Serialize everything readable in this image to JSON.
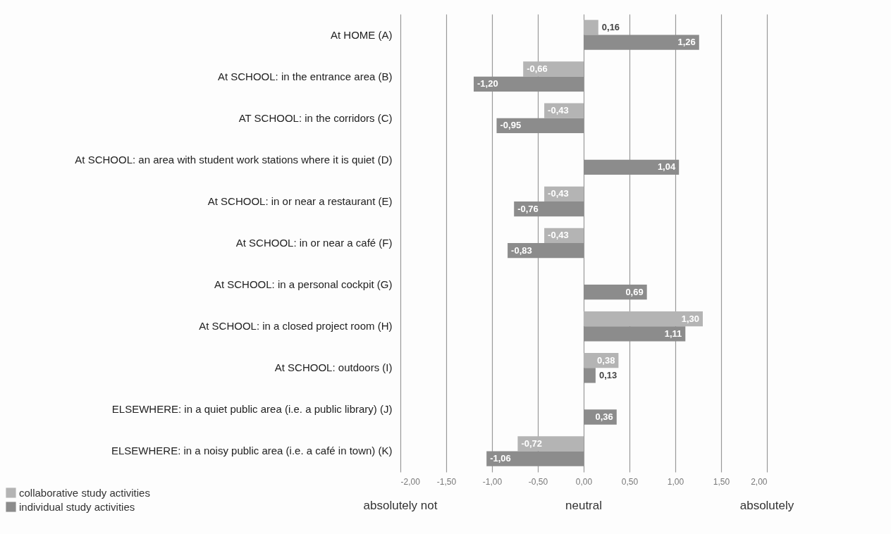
{
  "chart_data": {
    "type": "bar",
    "orientation": "horizontal",
    "categories": [
      "At HOME (A)",
      "At SCHOOL: in the entrance area (B)",
      "AT SCHOOL: in the corridors (C)",
      "At SCHOOL: an area with student work stations where it is quiet (D)",
      "At SCHOOL: in or near a restaurant (E)",
      "At SCHOOL: in or near a café (F)",
      "At SCHOOL: in a personal cockpit (G)",
      "At SCHOOL: in a closed project room (H)",
      "At SCHOOL: outdoors (I)",
      "ELSEWHERE:  in a quiet public area (i.e. a public library) (J)",
      "ELSEWHERE: in a noisy public area (i.e. a café in town) (K)"
    ],
    "series": [
      {
        "name": "collaborative study activities",
        "color": "#b4b4b4",
        "values": [
          0.16,
          -0.66,
          -0.43,
          null,
          -0.43,
          -0.43,
          null,
          1.3,
          0.38,
          null,
          -0.72
        ],
        "value_labels": [
          "0,16",
          "-0,66",
          "-0,43",
          null,
          "-0,43",
          "-0,43",
          null,
          "1,30",
          "0,38",
          null,
          "-0,72"
        ]
      },
      {
        "name": "individual study activities",
        "color": "#8c8c8c",
        "values": [
          1.26,
          -1.2,
          -0.95,
          1.04,
          -0.76,
          -0.83,
          0.69,
          1.11,
          0.13,
          0.36,
          -1.06
        ],
        "value_labels": [
          "1,26",
          "-1,20",
          "-0,95",
          "1,04",
          "-0,76",
          "-0,83",
          "0,69",
          "1,11",
          "0,13",
          "0,36",
          "-1,06"
        ]
      }
    ],
    "xlim": [
      -2,
      2
    ],
    "xticks": [
      {
        "value": -2,
        "label": "-2,00"
      },
      {
        "value": -1.5,
        "label": "-1,50"
      },
      {
        "value": -1,
        "label": "-1,00"
      },
      {
        "value": -0.5,
        "label": "-0,50"
      },
      {
        "value": 0,
        "label": "0,00"
      },
      {
        "value": 0.5,
        "label": "0,50"
      },
      {
        "value": 1,
        "label": "1,00"
      },
      {
        "value": 1.5,
        "label": "1,50"
      },
      {
        "value": 2,
        "label": "2,00"
      }
    ],
    "grid": "x",
    "legend": "bottom left",
    "annotations": [
      "absolutely not",
      "neutral",
      "absolutely"
    ]
  }
}
